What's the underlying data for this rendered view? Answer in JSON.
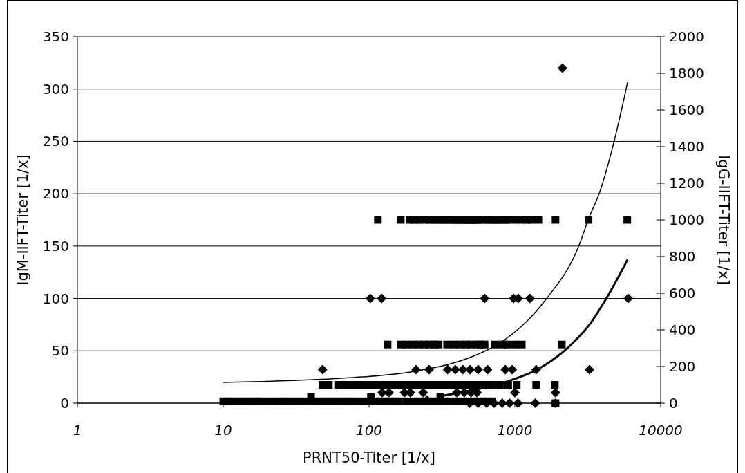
{
  "chart_data": {
    "type": "scatter",
    "xlabel": "PRNT50-Titer [1/x]",
    "ylabel": "IgM-IIFT-Titer [1/x]",
    "y2label": "IgG-IIFT-Titer [1/x]",
    "log": "x",
    "grid": "y",
    "xlim": [
      1,
      10000
    ],
    "xticks": [
      1,
      10,
      100,
      1000,
      10000
    ],
    "ylim": [
      0,
      350
    ],
    "yticks": [
      0,
      50,
      100,
      150,
      200,
      250,
      300,
      350
    ],
    "y2lim": [
      0,
      2000
    ],
    "y2ticks": [
      0,
      200,
      400,
      600,
      800,
      1000,
      1200,
      1400,
      1600,
      1800,
      2000
    ],
    "series": [
      {
        "marker": "square",
        "axis": "y2",
        "color": "#000000",
        "x": [
          115,
          165,
          190,
          205,
          220,
          240,
          260,
          280,
          300,
          320,
          340,
          360,
          380,
          400,
          420,
          440,
          460,
          480,
          500,
          520,
          540,
          560,
          600,
          650,
          680,
          720,
          760,
          800,
          850,
          900,
          1000,
          1100,
          1200,
          1300,
          1450,
          1900,
          3200,
          5900,
          134,
          165,
          180,
          200,
          220,
          240,
          260,
          280,
          300,
          343,
          380,
          420,
          460,
          500,
          548,
          580,
          620,
          730,
          820,
          890,
          1000,
          1115,
          2100,
          48,
          53,
          62,
          63,
          70,
          76,
          83,
          90,
          100,
          110,
          120,
          130,
          140,
          150,
          165,
          180,
          200,
          220,
          240,
          260,
          280,
          300,
          330,
          360,
          400,
          440,
          480,
          520,
          560,
          600,
          650,
          700,
          790,
          900,
          1030,
          1400,
          1880,
          10,
          10.5,
          11,
          12,
          13,
          14,
          15,
          16,
          17,
          18,
          20,
          22,
          24,
          26,
          28,
          30,
          33,
          36,
          40,
          44,
          48,
          52,
          56,
          60,
          65,
          70,
          75,
          80,
          90,
          100,
          110,
          120,
          130,
          140,
          150,
          160,
          180,
          200,
          220,
          240,
          260,
          280,
          300,
          330,
          360,
          400,
          440,
          480,
          520,
          560,
          600,
          650,
          700,
          40,
          103,
          308,
          1900
        ],
        "values": [
          1000,
          1000,
          1000,
          1000,
          1000,
          1000,
          1000,
          1000,
          1000,
          1000,
          1000,
          1000,
          1000,
          1000,
          1000,
          1000,
          1000,
          1000,
          1000,
          1000,
          1000,
          1000,
          1000,
          1000,
          1000,
          1000,
          1000,
          1000,
          1000,
          1000,
          1000,
          1000,
          1000,
          1000,
          1000,
          1000,
          1000,
          1000,
          320,
          320,
          320,
          320,
          320,
          320,
          320,
          320,
          320,
          320,
          320,
          320,
          320,
          320,
          320,
          320,
          320,
          320,
          320,
          320,
          320,
          320,
          320,
          100,
          100,
          100,
          100,
          100,
          100,
          100,
          100,
          100,
          100,
          100,
          100,
          100,
          100,
          100,
          100,
          100,
          100,
          100,
          100,
          100,
          100,
          100,
          100,
          100,
          100,
          100,
          100,
          100,
          100,
          100,
          100,
          100,
          100,
          100,
          100,
          100,
          10,
          10,
          10,
          10,
          10,
          10,
          10,
          10,
          10,
          10,
          10,
          10,
          10,
          10,
          10,
          10,
          10,
          10,
          10,
          10,
          10,
          10,
          10,
          10,
          10,
          10,
          10,
          10,
          10,
          10,
          10,
          10,
          10,
          10,
          10,
          10,
          10,
          10,
          10,
          10,
          10,
          10,
          10,
          10,
          10,
          10,
          10,
          10,
          10,
          10,
          10,
          10,
          10,
          32,
          32,
          32,
          0
        ]
      },
      {
        "marker": "diamond",
        "axis": "y",
        "color": "#000000",
        "x": [
          2120,
          102,
          122,
          620,
          980,
          1055,
          1270,
          5990,
          48,
          210,
          258,
          346,
          390,
          440,
          492,
          560,
          650,
          860,
          960,
          1400,
          3250,
          123,
          137,
          175,
          192,
          235,
          400,
          450,
          500,
          550,
          1000,
          1900,
          490,
          560,
          640,
          720,
          820,
          920,
          1050,
          1380,
          1900,
          250
        ],
        "values": [
          320,
          100,
          100,
          100,
          100,
          100,
          100,
          100,
          32,
          32,
          32,
          32,
          32,
          32,
          32,
          32,
          32,
          32,
          32,
          32,
          32,
          10,
          10,
          10,
          10,
          10,
          10,
          10,
          10,
          10,
          10,
          10,
          0,
          0,
          0,
          0,
          0,
          0,
          0,
          0,
          0,
          3
        ]
      },
      {
        "type": "line",
        "marker": "none",
        "line_style": "solid",
        "axis": "y2",
        "color": "#000000",
        "x": [
          10,
          89,
          205,
          548,
          778,
          1633,
          2730,
          3250,
          3785,
          4760,
          5930
        ],
        "values": [
          113,
          143,
          174,
          264,
          325,
          566,
          853,
          1019,
          1143,
          1419,
          1751
        ]
      },
      {
        "type": "line",
        "marker": "none",
        "line_style": "solid",
        "axis": "y",
        "color": "#000000",
        "x": [
          308,
          548,
          705,
          947,
          1465,
          2395,
          3250,
          4365,
          5930
        ],
        "values": [
          6.6,
          13.2,
          16.5,
          22,
          33,
          55,
          75,
          103,
          137
        ]
      }
    ]
  }
}
